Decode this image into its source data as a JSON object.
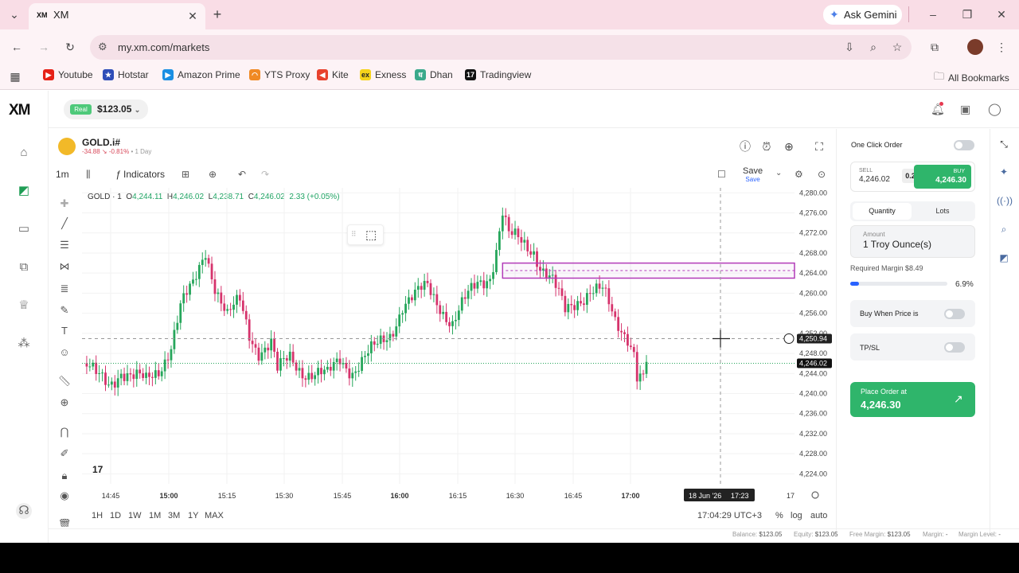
{
  "browser": {
    "tab_title": "XM",
    "tab_favicon": "XM",
    "new_tab": "+",
    "url": "my.xm.com/markets",
    "gemini_label": "Ask Gemini",
    "bookmarks": [
      {
        "label": "Youtube",
        "icon": "youtube-icon",
        "color": "#e62117",
        "glyph": "▶"
      },
      {
        "label": "Hotstar",
        "icon": "hotstar-icon",
        "color": "#2e4db8",
        "glyph": "★"
      },
      {
        "label": "Amazon Prime",
        "icon": "prime-icon",
        "color": "#1a8fe3",
        "glyph": "▶"
      },
      {
        "label": "YTS Proxy",
        "icon": "yts-icon",
        "color": "#f08a24",
        "glyph": "◠"
      },
      {
        "label": "Kite",
        "icon": "kite-icon",
        "color": "#e8412d",
        "glyph": "◀"
      },
      {
        "label": "Exness",
        "icon": "exness-icon",
        "color": "#f5d31b",
        "glyph": "ex"
      },
      {
        "label": "Dhan",
        "icon": "dhan-icon",
        "color": "#3aa98b",
        "glyph": "ध"
      },
      {
        "label": "Tradingview",
        "icon": "tradingview-icon",
        "color": "#111111",
        "glyph": "17"
      }
    ],
    "all_bookmarks": "All Bookmarks"
  },
  "app": {
    "logo": "XM",
    "account_badge": "Real",
    "balance": "$123.05",
    "symbol": "GOLD.i#",
    "change": "-34.88",
    "change_pct": "-0.81%",
    "change_period": "• 1 Day",
    "interval": "1m",
    "indicators_label": "Indicators",
    "save_label": "Save",
    "save_sub": "Save",
    "ohlc": {
      "name": "GOLD · 1",
      "open_label": "O",
      "open": "4,244.11",
      "high_label": "H",
      "high": "4,246.02",
      "low_label": "L",
      "low": "4,238.71",
      "close_label": "C",
      "close": "4,246.02",
      "change": "2.33 (+0.05%)"
    },
    "timeframes": [
      "1H",
      "1D",
      "1W",
      "1M",
      "3M",
      "1Y",
      "MAX"
    ],
    "clock": "17:04:29 UTC+3",
    "scale_opts": [
      "%",
      "log",
      "auto"
    ],
    "crosshair_date": "18 Jun '26",
    "crosshair_time": "17:23",
    "crosshair_price": "4,250.94",
    "last_price": "4,246.02",
    "tv_logo": "17"
  },
  "order_panel": {
    "one_click": "One Click Order",
    "sell_label": "SELL",
    "sell_price": "4,246.02",
    "spread": "0.28",
    "buy_label": "BUY",
    "buy_price": "4,246.30",
    "tab_quantity": "Quantity",
    "tab_lots": "Lots",
    "amount_label": "Amount",
    "amount_value": "1 Troy Ounce(s)",
    "required_margin": "Required Margin $8.49",
    "margin_pct": "6.9%",
    "margin_fraction": 0.069,
    "buy_when": "Buy When Price is",
    "tpsl": "TP/SL",
    "place_order_label": "Place Order at",
    "place_order_price": "4,246.30"
  },
  "footer": {
    "balance_label": "Balance:",
    "balance": "$123.05",
    "equity_label": "Equity:",
    "equity": "$123.05",
    "free_margin_label": "Free Margin:",
    "free_margin": "$123.05",
    "margin_label": "Margin:",
    "margin": "-",
    "margin_level_label": "Margin Level:",
    "margin_level": "-"
  },
  "chart_data": {
    "type": "candlestick",
    "title": "GOLD · 1",
    "x_ticks": [
      "14:45",
      "15:00",
      "15:15",
      "15:30",
      "15:45",
      "16:00",
      "16:15",
      "16:30",
      "16:45",
      "17:00",
      "17"
    ],
    "bold_x_ticks": [
      "15:00",
      "16:00",
      "17:00"
    ],
    "y_ticks": [
      "4,280.00",
      "4,276.00",
      "4,272.00",
      "4,268.00",
      "4,264.00",
      "4,260.00",
      "4,256.00",
      "4,252.00",
      "4,248.00",
      "4,244.00",
      "4,240.00",
      "4,236.00",
      "4,232.00",
      "4,228.00",
      "4,224.00"
    ],
    "ylim": [
      4222,
      4281
    ],
    "y_axis_side": "right",
    "grid": true,
    "colors": {
      "up": "#26a65b",
      "down": "#d6336c"
    },
    "price_path": [
      [
        0,
        4246
      ],
      [
        4,
        4243
      ],
      [
        8,
        4242
      ],
      [
        12,
        4245
      ],
      [
        16,
        4243
      ],
      [
        20,
        4242
      ],
      [
        24,
        4245
      ],
      [
        28,
        4250
      ],
      [
        31,
        4257
      ],
      [
        35,
        4261
      ],
      [
        39,
        4269
      ],
      [
        42,
        4262
      ],
      [
        46,
        4255
      ],
      [
        50,
        4258
      ],
      [
        53,
        4252
      ],
      [
        56,
        4249
      ],
      [
        60,
        4250
      ],
      [
        62,
        4244
      ],
      [
        66,
        4247
      ],
      [
        70,
        4245
      ],
      [
        74,
        4244
      ],
      [
        78,
        4243
      ],
      [
        82,
        4247
      ],
      [
        86,
        4245
      ],
      [
        90,
        4247
      ],
      [
        94,
        4249
      ],
      [
        98,
        4252
      ],
      [
        102,
        4258
      ],
      [
        106,
        4259
      ],
      [
        110,
        4261
      ],
      [
        114,
        4258
      ],
      [
        118,
        4254
      ],
      [
        122,
        4258
      ],
      [
        126,
        4262
      ],
      [
        130,
        4264
      ],
      [
        132,
        4269
      ],
      [
        134,
        4276
      ],
      [
        136,
        4271
      ],
      [
        140,
        4270
      ],
      [
        144,
        4269
      ],
      [
        146,
        4266
      ],
      [
        150,
        4262
      ],
      [
        154,
        4256
      ],
      [
        158,
        4259
      ],
      [
        162,
        4261
      ],
      [
        166,
        4260
      ],
      [
        170,
        4254
      ],
      [
        174,
        4252
      ],
      [
        176,
        4249
      ],
      [
        177,
        4244
      ],
      [
        179,
        4243
      ],
      [
        180,
        4246
      ]
    ],
    "zone": {
      "from_index": 134,
      "to_index": 203,
      "top": 4266,
      "bottom": 4263
    }
  }
}
